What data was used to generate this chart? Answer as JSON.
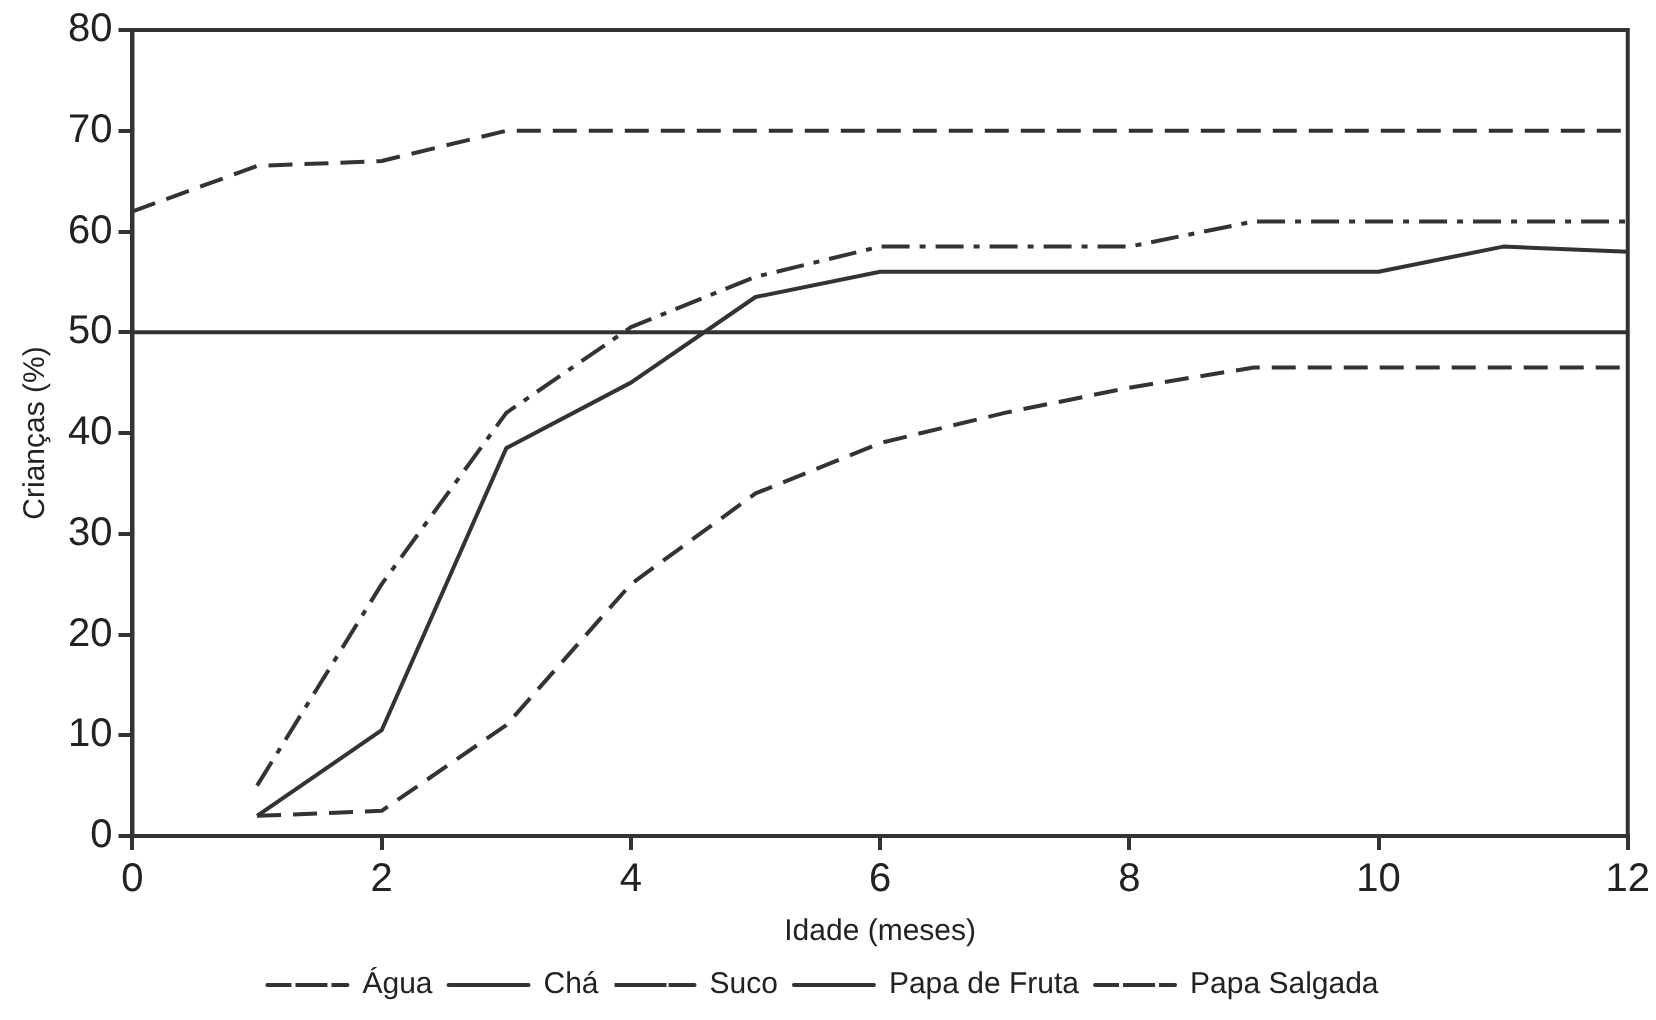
{
  "chart_data": {
    "type": "line",
    "xlabel": "Idade (meses)",
    "ylabel": "Crianças (%)",
    "xlim": [
      0,
      12
    ],
    "xticks": [
      0,
      2,
      4,
      6,
      8,
      10,
      12
    ],
    "ylim": [
      0,
      80
    ],
    "yticks": [
      0,
      10,
      20,
      30,
      40,
      50,
      60,
      70,
      80
    ],
    "grid": false,
    "legend": "bottom",
    "marker": "none",
    "series": [
      {
        "name": "Água",
        "color": "#333333",
        "line_style": "dashed",
        "x": [
          0,
          1,
          2,
          3,
          4,
          5,
          6,
          7,
          8,
          9,
          10,
          11,
          12
        ],
        "values": [
          62,
          66.5,
          67,
          70,
          70,
          70,
          70,
          70,
          70,
          70,
          70,
          70,
          70
        ]
      },
      {
        "name": "Chá",
        "color": "#333333",
        "line_style": "solid",
        "x": [
          0,
          12
        ],
        "values": [
          50,
          50
        ]
      },
      {
        "name": "Suco",
        "color": "#333333",
        "line_style": "dashdot",
        "x": [
          1,
          2,
          3,
          4,
          5,
          6,
          7,
          8,
          9,
          10,
          11,
          12
        ],
        "values": [
          5,
          25,
          42,
          50.5,
          55.5,
          58.5,
          58.5,
          58.5,
          61,
          61,
          61,
          61
        ]
      },
      {
        "name": "Papa de Fruta",
        "color": "#333333",
        "line_style": "solid",
        "x": [
          1,
          2,
          3,
          4,
          5,
          6,
          7,
          8,
          9,
          10,
          11,
          12
        ],
        "values": [
          2,
          10.5,
          38.5,
          45,
          53.5,
          56,
          56,
          56,
          56,
          56,
          58.5,
          58
        ]
      },
      {
        "name": "Papa Salgada",
        "color": "#333333",
        "line_style": "dashed",
        "x": [
          1,
          2,
          3,
          4,
          5,
          6,
          7,
          8,
          9,
          10,
          11,
          12
        ],
        "values": [
          2,
          2.5,
          11,
          25,
          34,
          39,
          42,
          44.5,
          46.5,
          46.5,
          46.5,
          46.5
        ]
      }
    ]
  }
}
